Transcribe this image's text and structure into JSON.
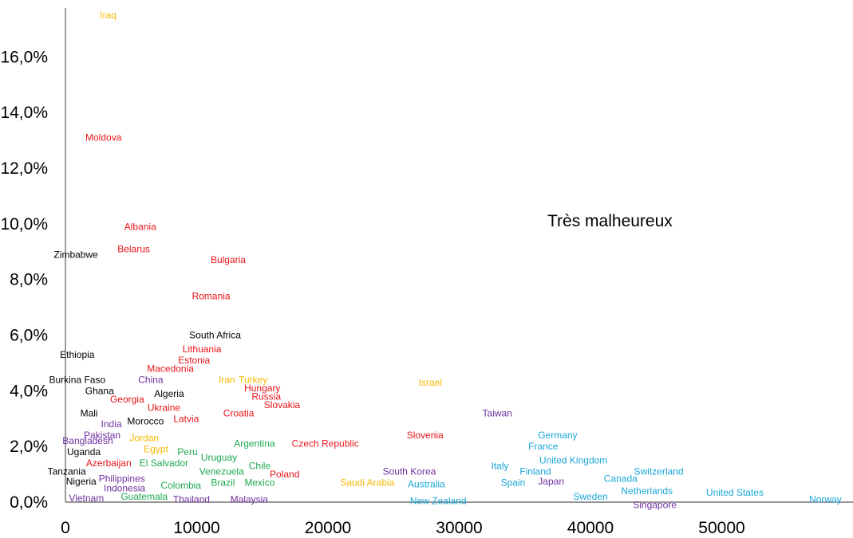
{
  "chart_data": {
    "type": "scatter",
    "title": "",
    "annotation": "Très malheureux",
    "xlabel": "",
    "ylabel": "",
    "xlim": [
      0,
      60000
    ],
    "ylim": [
      0,
      17.7
    ],
    "grid": false,
    "x_ticks": [
      {
        "value": 0,
        "label": "0"
      },
      {
        "value": 10000,
        "label": "10000"
      },
      {
        "value": 20000,
        "label": "20000"
      },
      {
        "value": 30000,
        "label": "30000"
      },
      {
        "value": 40000,
        "label": "40000"
      },
      {
        "value": 50000,
        "label": "50000"
      }
    ],
    "y_ticks": [
      {
        "value": 0,
        "label": "0,0%"
      },
      {
        "value": 2,
        "label": "2,0%"
      },
      {
        "value": 4,
        "label": "4,0%"
      },
      {
        "value": 6,
        "label": "6,0%"
      },
      {
        "value": 8,
        "label": "8,0%"
      },
      {
        "value": 10,
        "label": "10,0%"
      },
      {
        "value": 12,
        "label": "12,0%"
      },
      {
        "value": 14,
        "label": "14,0%"
      },
      {
        "value": 16,
        "label": "16,0%"
      }
    ],
    "colors": {
      "orange": "#F5B800",
      "red": "#E8141A",
      "black": "#000000",
      "purple": "#7030A0",
      "green": "#1EA84F",
      "blue": "#19A7D8"
    },
    "points": [
      {
        "label": "Iraq",
        "x": 3250,
        "y": 17.5,
        "color": "orange"
      },
      {
        "label": "Moldova",
        "x": 2900,
        "y": 13.1,
        "color": "red"
      },
      {
        "label": "Albania",
        "x": 5700,
        "y": 9.9,
        "color": "red"
      },
      {
        "label": "Belarus",
        "x": 5200,
        "y": 9.1,
        "color": "red"
      },
      {
        "label": "Zimbabwe",
        "x": 800,
        "y": 8.9,
        "color": "black"
      },
      {
        "label": "Bulgaria",
        "x": 12400,
        "y": 8.7,
        "color": "red"
      },
      {
        "label": "Romania",
        "x": 11100,
        "y": 7.4,
        "color": "red"
      },
      {
        "label": "South Africa",
        "x": 11400,
        "y": 6.0,
        "color": "black"
      },
      {
        "label": "Ethiopia",
        "x": 900,
        "y": 5.3,
        "color": "black"
      },
      {
        "label": "Lithuania",
        "x": 10400,
        "y": 5.5,
        "color": "red"
      },
      {
        "label": "Estonia",
        "x": 9800,
        "y": 5.1,
        "color": "red"
      },
      {
        "label": "Macedonia",
        "x": 8000,
        "y": 4.8,
        "color": "red"
      },
      {
        "label": "Iran",
        "x": 12300,
        "y": 4.4,
        "color": "orange"
      },
      {
        "label": "Turkey",
        "x": 14300,
        "y": 4.4,
        "color": "orange"
      },
      {
        "label": "Burkina Faso",
        "x": 900,
        "y": 4.4,
        "color": "black"
      },
      {
        "label": "China",
        "x": 6500,
        "y": 4.4,
        "color": "purple"
      },
      {
        "label": "Israel",
        "x": 27800,
        "y": 4.3,
        "color": "orange"
      },
      {
        "label": "Hungary",
        "x": 15000,
        "y": 4.1,
        "color": "red"
      },
      {
        "label": "Ghana",
        "x": 2600,
        "y": 4.0,
        "color": "black"
      },
      {
        "label": "Algeria",
        "x": 7900,
        "y": 3.9,
        "color": "black"
      },
      {
        "label": "Russia",
        "x": 15300,
        "y": 3.8,
        "color": "red"
      },
      {
        "label": "Georgia",
        "x": 4700,
        "y": 3.7,
        "color": "red"
      },
      {
        "label": "Slovakia",
        "x": 16500,
        "y": 3.5,
        "color": "red"
      },
      {
        "label": "Ukraine",
        "x": 7500,
        "y": 3.4,
        "color": "red"
      },
      {
        "label": "Croatia",
        "x": 13200,
        "y": 3.2,
        "color": "red"
      },
      {
        "label": "Taiwan",
        "x": 32900,
        "y": 3.2,
        "color": "purple"
      },
      {
        "label": "Mali",
        "x": 1800,
        "y": 3.2,
        "color": "black"
      },
      {
        "label": "Latvia",
        "x": 9200,
        "y": 3.0,
        "color": "red"
      },
      {
        "label": "Morocco",
        "x": 6100,
        "y": 2.9,
        "color": "black"
      },
      {
        "label": "India",
        "x": 3500,
        "y": 2.8,
        "color": "purple"
      },
      {
        "label": "Pakistan",
        "x": 2800,
        "y": 2.4,
        "color": "purple"
      },
      {
        "label": "Slovenia",
        "x": 27400,
        "y": 2.4,
        "color": "red"
      },
      {
        "label": "Germany",
        "x": 37500,
        "y": 2.4,
        "color": "blue"
      },
      {
        "label": "Jordan",
        "x": 6000,
        "y": 2.3,
        "color": "orange"
      },
      {
        "label": "Bangladesh",
        "x": 1700,
        "y": 2.2,
        "color": "purple"
      },
      {
        "label": "Argentina",
        "x": 14400,
        "y": 2.1,
        "color": "green"
      },
      {
        "label": "Czech Republic",
        "x": 19800,
        "y": 2.1,
        "color": "red"
      },
      {
        "label": "France",
        "x": 36400,
        "y": 2.0,
        "color": "blue"
      },
      {
        "label": "Egypt",
        "x": 6900,
        "y": 1.9,
        "color": "orange"
      },
      {
        "label": "Peru",
        "x": 9300,
        "y": 1.8,
        "color": "green"
      },
      {
        "label": "Uganda",
        "x": 1400,
        "y": 1.8,
        "color": "black"
      },
      {
        "label": "Uruguay",
        "x": 11700,
        "y": 1.6,
        "color": "green"
      },
      {
        "label": "United Kingdom",
        "x": 38700,
        "y": 1.5,
        "color": "blue"
      },
      {
        "label": "El Salvador",
        "x": 7500,
        "y": 1.4,
        "color": "green"
      },
      {
        "label": "Azerbaijan",
        "x": 3300,
        "y": 1.4,
        "color": "red"
      },
      {
        "label": "Chile",
        "x": 14800,
        "y": 1.3,
        "color": "green"
      },
      {
        "label": "Italy",
        "x": 33100,
        "y": 1.3,
        "color": "blue"
      },
      {
        "label": "Switzerland",
        "x": 45200,
        "y": 1.1,
        "color": "blue"
      },
      {
        "label": "Venezuela",
        "x": 11900,
        "y": 1.1,
        "color": "green"
      },
      {
        "label": "Finland",
        "x": 35800,
        "y": 1.1,
        "color": "blue"
      },
      {
        "label": "South Korea",
        "x": 26200,
        "y": 1.1,
        "color": "purple"
      },
      {
        "label": "Tanzania",
        "x": 100,
        "y": 1.1,
        "color": "black"
      },
      {
        "label": "Poland",
        "x": 16700,
        "y": 1.0,
        "color": "red"
      },
      {
        "label": "Philippines",
        "x": 4300,
        "y": 0.85,
        "color": "purple"
      },
      {
        "label": "Canada",
        "x": 42300,
        "y": 0.85,
        "color": "blue"
      },
      {
        "label": "Nigeria",
        "x": 1200,
        "y": 0.75,
        "color": "black"
      },
      {
        "label": "Saudi Arabia",
        "x": 23000,
        "y": 0.7,
        "color": "orange"
      },
      {
        "label": "Spain",
        "x": 34100,
        "y": 0.7,
        "color": "blue"
      },
      {
        "label": "Japan",
        "x": 37000,
        "y": 0.75,
        "color": "purple"
      },
      {
        "label": "Brazil",
        "x": 12000,
        "y": 0.7,
        "color": "green"
      },
      {
        "label": "Mexico",
        "x": 14800,
        "y": 0.7,
        "color": "green"
      },
      {
        "label": "Australia",
        "x": 27500,
        "y": 0.65,
        "color": "blue"
      },
      {
        "label": "Colombia",
        "x": 8800,
        "y": 0.6,
        "color": "green"
      },
      {
        "label": "Indonesia",
        "x": 4500,
        "y": 0.5,
        "color": "purple"
      },
      {
        "label": "Netherlands",
        "x": 44300,
        "y": 0.4,
        "color": "blue"
      },
      {
        "label": "United States",
        "x": 51000,
        "y": 0.35,
        "color": "blue"
      },
      {
        "label": "Guatemala",
        "x": 6000,
        "y": 0.2,
        "color": "green"
      },
      {
        "label": "Sweden",
        "x": 40000,
        "y": 0.2,
        "color": "blue"
      },
      {
        "label": "Vietnam",
        "x": 1600,
        "y": 0.15,
        "color": "purple"
      },
      {
        "label": "Thailand",
        "x": 9600,
        "y": 0.1,
        "color": "purple"
      },
      {
        "label": "Malaysia",
        "x": 14000,
        "y": 0.1,
        "color": "purple"
      },
      {
        "label": "Norway",
        "x": 57900,
        "y": 0.1,
        "color": "blue"
      },
      {
        "label": "New Zealand",
        "x": 28400,
        "y": 0.05,
        "color": "blue"
      },
      {
        "label": "Singapore",
        "x": 44900,
        "y": -0.1,
        "color": "purple"
      }
    ]
  }
}
